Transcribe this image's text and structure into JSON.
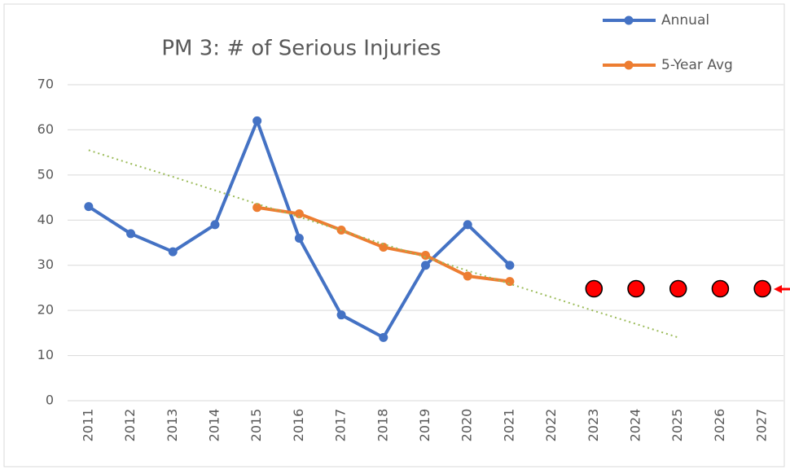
{
  "chart_data": {
    "type": "line",
    "title": "PM 3: # of Serious Injuries",
    "categories": [
      "2011",
      "2012",
      "2013",
      "2014",
      "2015",
      "2016",
      "2017",
      "2018",
      "2019",
      "2020",
      "2021",
      "2022",
      "2023",
      "2024",
      "2025",
      "2026",
      "2027"
    ],
    "series": [
      {
        "name": "Annual",
        "color": "#4472c4",
        "values": [
          43,
          37,
          33,
          39,
          62,
          36,
          19,
          14,
          30,
          39,
          30,
          null,
          null,
          null,
          null,
          null,
          null
        ]
      },
      {
        "name": "5-Year Avg",
        "color": "#ed7d31",
        "values": [
          null,
          null,
          null,
          null,
          42.8,
          41.4,
          37.8,
          34,
          32.2,
          27.6,
          26.4,
          null,
          null,
          null,
          null,
          null,
          null
        ]
      },
      {
        "color": "#9bbb59",
        "style": "dotted",
        "values": [
          55.5,
          52.5,
          49.6,
          46.6,
          43.6,
          40.7,
          37.7,
          34.7,
          31.8,
          28.8,
          25.9,
          22.9,
          19.9,
          17.0,
          14.0,
          null,
          null
        ]
      },
      {
        "color": "#ff0000",
        "style": "dots",
        "values": [
          null,
          null,
          null,
          null,
          null,
          null,
          null,
          null,
          null,
          null,
          null,
          null,
          24.8,
          24.8,
          24.8,
          24.8,
          24.8
        ]
      }
    ],
    "ylim": [
      0,
      70
    ],
    "yticks": [
      0,
      10,
      20,
      30,
      40,
      50,
      60,
      70
    ],
    "grid": true,
    "legend": "top-right"
  }
}
